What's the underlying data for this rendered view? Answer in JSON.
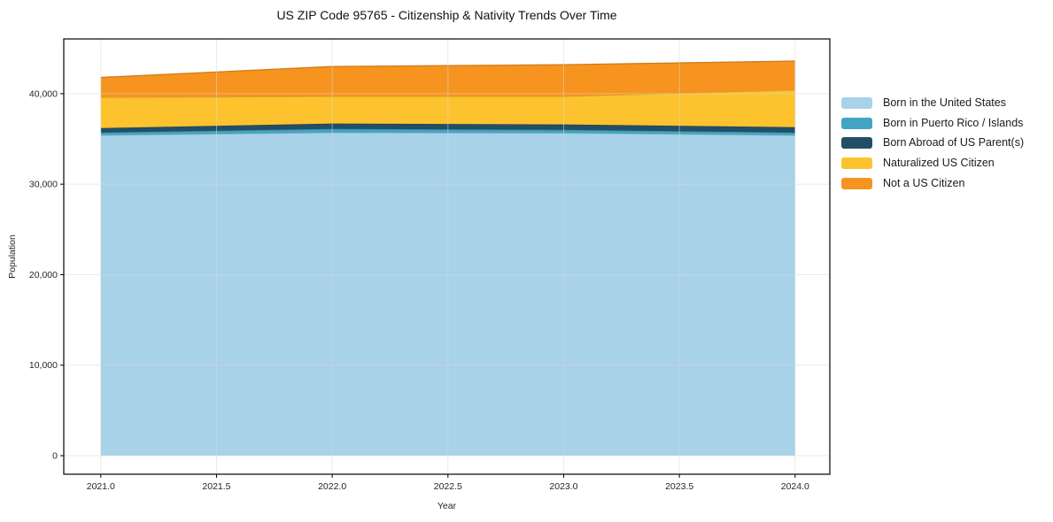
{
  "figure": {
    "background": "#ffffff",
    "grid_color": "#d9d9d9",
    "spine_color": "#000000",
    "tick_color": "#000000",
    "text_color": "#262626"
  },
  "chart_data": {
    "type": "area",
    "stacked": true,
    "title": "US ZIP Code 95765 - Citizenship & Nativity Trends Over Time",
    "xlabel": "Year",
    "ylabel": "Population",
    "x": [
      2021,
      2022,
      2023,
      2024
    ],
    "series": [
      {
        "name": "Born in the United States",
        "color": "#a8d2e8",
        "values": [
          35400,
          35700,
          35650,
          35400
        ]
      },
      {
        "name": "Born in Puerto Rico / Islands",
        "color": "#44a5c2",
        "values": [
          300,
          400,
          350,
          300
        ]
      },
      {
        "name": "Born Abroad of US Parent(s)",
        "color": "#224f66",
        "values": [
          500,
          600,
          600,
          600
        ]
      },
      {
        "name": "Naturalized US Citizen",
        "color": "#fdc32e",
        "values": [
          3400,
          3000,
          3100,
          4100
        ]
      },
      {
        "name": "Not a US Citizen",
        "color": "#f7941f",
        "values": [
          2200,
          3300,
          3500,
          3200
        ]
      }
    ],
    "totals": [
      41800,
      43000,
      43200,
      43600
    ],
    "xlim": [
      2020.84,
      2024.15
    ],
    "ylim": [
      -2050,
      46050
    ],
    "xticks": {
      "values": [
        2021.0,
        2021.5,
        2022.0,
        2022.5,
        2023.0,
        2023.5,
        2024.0
      ],
      "labels": [
        "2021.0",
        "2021.5",
        "2022.0",
        "2022.5",
        "2023.0",
        "2023.5",
        "2024.0"
      ]
    },
    "yticks": {
      "values": [
        0,
        10000,
        20000,
        30000,
        40000
      ],
      "labels": [
        "0",
        "10,000",
        "20,000",
        "30,000",
        "40,000"
      ]
    },
    "grid": true,
    "legend_position": "right-outside"
  }
}
